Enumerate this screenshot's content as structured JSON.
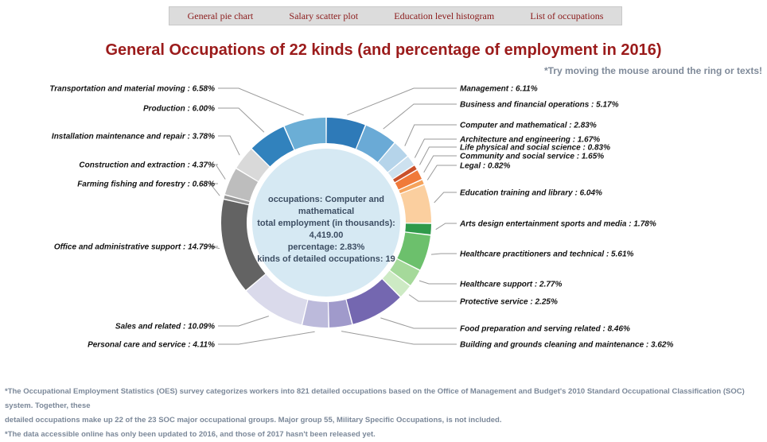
{
  "nav": {
    "items": [
      "General pie chart",
      "Salary scatter plot",
      "Education level histogram",
      "List of occupations"
    ]
  },
  "title": "General Occupations of 22 kinds (and percentage of employment in 2016)",
  "hint": "*Try moving the mouse around the ring or texts!",
  "center": {
    "line1": "occupations: Computer and mathematical",
    "line2": "total employment (in thousands): 4,419.00",
    "line3": "percentage: 2.83%",
    "line4": "kinds of detailed occupations: 19"
  },
  "footnotes": {
    "line1": "*The Occupational Employment Statistics (OES) survey categorizes workers into 821 detailed occupations based on the Office of Management and Budget's 2010 Standard Occupational Classification (SOC) system. Together, these",
    "line2": "detailed occupations make up 22 of the 23 SOC major occupational groups. Major group 55, Military Specific Occupations, is not included.",
    "line3": "*The data accessible online has only been updated to 2016, and those of 2017 hasn't been released yet."
  },
  "chart_data": {
    "type": "pie",
    "variant": "donut",
    "title": "General Occupations of 22 kinds (and percentage of employment in 2016)",
    "slices": [
      {
        "label": "Management",
        "value": 6.11,
        "text": "Management : 6.11%",
        "color": "#2e7ab8"
      },
      {
        "label": "Business and financial operations",
        "value": 5.17,
        "text": "Business and financial operations : 5.17%",
        "color": "#6aaad6"
      },
      {
        "label": "Computer and mathematical",
        "value": 2.83,
        "text": "Computer and mathematical : 2.83%",
        "color": "#b5d4ea"
      },
      {
        "label": "Architecture and engineering",
        "value": 1.67,
        "text": "Architecture and engineering : 1.67%",
        "color": "#cde1ef"
      },
      {
        "label": "Life physical and social science",
        "value": 0.83,
        "text": "Life physical and social science : 0.83%",
        "color": "#c9502a"
      },
      {
        "label": "Community and social service",
        "value": 1.65,
        "text": "Community and social service : 1.65%",
        "color": "#f07a3a"
      },
      {
        "label": "Legal",
        "value": 0.82,
        "text": "Legal : 0.82%",
        "color": "#f5a35c"
      },
      {
        "label": "Education training and library",
        "value": 6.04,
        "text": "Education training and library : 6.04%",
        "color": "#fbcf9f"
      },
      {
        "label": "Arts design entertainment sports and media",
        "value": 1.78,
        "text": "Arts design entertainment sports and media : 1.78%",
        "color": "#2f9a4a"
      },
      {
        "label": "Healthcare practitioners and technical",
        "value": 5.61,
        "text": "Healthcare practitioners and technical : 5.61%",
        "color": "#6cc06c"
      },
      {
        "label": "Healthcare support",
        "value": 2.77,
        "text": "Healthcare support : 2.77%",
        "color": "#a5d99a"
      },
      {
        "label": "Protective service",
        "value": 2.25,
        "text": "Protective service : 2.25%",
        "color": "#cdeac4"
      },
      {
        "label": "Food preparation and serving related",
        "value": 8.46,
        "text": "Food preparation and serving related : 8.46%",
        "color": "#7467b0"
      },
      {
        "label": "Building and grounds cleaning and maintenance",
        "value": 3.62,
        "text": "Building and grounds cleaning and maintenance : 3.62%",
        "color": "#a09acb"
      },
      {
        "label": "Personal care and service",
        "value": 4.11,
        "text": "Personal care and service : 4.11%",
        "color": "#bcbadb"
      },
      {
        "label": "Sales and related",
        "value": 10.09,
        "text": "Sales and related : 10.09%",
        "color": "#dadaeb"
      },
      {
        "label": "Office and administrative support",
        "value": 14.79,
        "text": "Office and administrative support : 14.79%",
        "color": "#636363"
      },
      {
        "label": "Farming fishing and forestry",
        "value": 0.68,
        "text": "Farming fishing and forestry : 0.68%",
        "color": "#969696"
      },
      {
        "label": "Construction and extraction",
        "value": 4.37,
        "text": "Construction and extraction : 4.37%",
        "color": "#bdbdbd"
      },
      {
        "label": "Installation maintenance and repair",
        "value": 3.78,
        "text": "Installation maintenance and repair : 3.78%",
        "color": "#d9d9d9"
      },
      {
        "label": "Production",
        "value": 6.0,
        "text": "Production : 6.00%",
        "color": "#3182bd"
      },
      {
        "label": "Transportation and material moving",
        "value": 6.58,
        "text": "Transportation and material moving : 6.58%",
        "color": "#6baed6"
      }
    ]
  }
}
